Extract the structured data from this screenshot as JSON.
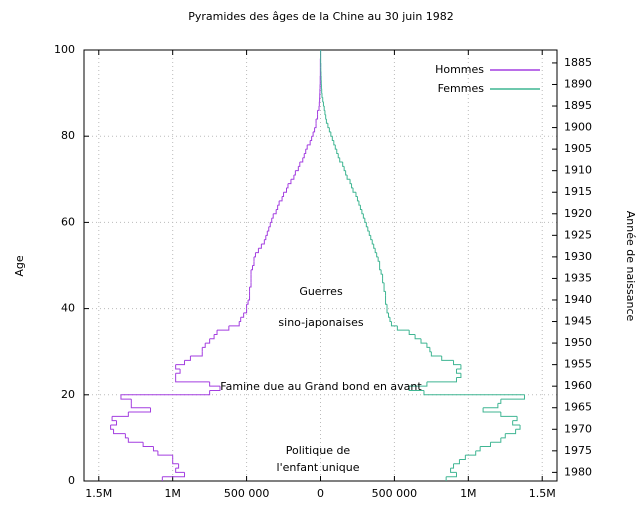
{
  "chart_data": {
    "type": "step-pyramid",
    "title": "Pyramides des âges de la Chine au 30 juin 1982",
    "y_label": "Age",
    "y2_label": "Année de naissance",
    "y": [
      0,
      1,
      2,
      3,
      4,
      5,
      6,
      7,
      8,
      9,
      10,
      11,
      12,
      13,
      14,
      15,
      16,
      17,
      18,
      19,
      20,
      21,
      22,
      23,
      24,
      25,
      26,
      27,
      28,
      29,
      30,
      31,
      32,
      33,
      34,
      35,
      36,
      37,
      38,
      39,
      40,
      41,
      42,
      43,
      44,
      45,
      46,
      47,
      48,
      49,
      50,
      51,
      52,
      53,
      54,
      55,
      56,
      57,
      58,
      59,
      60,
      61,
      62,
      63,
      64,
      65,
      66,
      67,
      68,
      69,
      70,
      71,
      72,
      73,
      74,
      75,
      76,
      77,
      78,
      79,
      80,
      81,
      82,
      83,
      84,
      85,
      86,
      87,
      88,
      89,
      90,
      91,
      92,
      93,
      94,
      95,
      96,
      97,
      98,
      99
    ],
    "series": [
      {
        "name": "Hommes",
        "color": "#a33ee0",
        "values": [
          -1070000,
          -920000,
          -980000,
          -960000,
          -1000000,
          -1000000,
          -1100000,
          -1130000,
          -1200000,
          -1300000,
          -1320000,
          -1400000,
          -1420000,
          -1380000,
          -1410000,
          -1300000,
          -1150000,
          -1280000,
          -1280000,
          -1350000,
          -750000,
          -680000,
          -750000,
          -980000,
          -980000,
          -950000,
          -980000,
          -920000,
          -880000,
          -800000,
          -800000,
          -780000,
          -750000,
          -720000,
          -700000,
          -620000,
          -550000,
          -540000,
          -520000,
          -500000,
          -500000,
          -490000,
          -480000,
          -480000,
          -480000,
          -470000,
          -470000,
          -470000,
          -470000,
          -460000,
          -450000,
          -450000,
          -440000,
          -420000,
          -400000,
          -380000,
          -370000,
          -360000,
          -350000,
          -340000,
          -330000,
          -320000,
          -300000,
          -290000,
          -280000,
          -260000,
          -250000,
          -230000,
          -220000,
          -200000,
          -180000,
          -170000,
          -150000,
          -140000,
          -120000,
          -110000,
          -100000,
          -90000,
          -70000,
          -60000,
          -50000,
          -40000,
          -30000,
          -30000,
          -20000,
          -20000,
          -10000,
          -8000,
          -6000,
          -5000,
          -4000,
          -3000,
          -2000,
          -2000,
          -1000,
          -1000,
          -1000,
          -1000,
          0,
          0
        ]
      },
      {
        "name": "Femmes",
        "color": "#3fb592",
        "values": [
          850000,
          920000,
          880000,
          900000,
          940000,
          980000,
          1050000,
          1080000,
          1150000,
          1220000,
          1250000,
          1320000,
          1350000,
          1300000,
          1330000,
          1220000,
          1100000,
          1200000,
          1220000,
          1380000,
          700000,
          600000,
          720000,
          920000,
          950000,
          920000,
          950000,
          900000,
          820000,
          750000,
          740000,
          720000,
          680000,
          640000,
          600000,
          520000,
          480000,
          470000,
          460000,
          450000,
          450000,
          440000,
          440000,
          440000,
          430000,
          430000,
          420000,
          420000,
          410000,
          400000,
          400000,
          390000,
          380000,
          370000,
          360000,
          350000,
          340000,
          330000,
          320000,
          310000,
          300000,
          290000,
          280000,
          270000,
          260000,
          250000,
          240000,
          220000,
          210000,
          200000,
          180000,
          170000,
          160000,
          150000,
          130000,
          120000,
          110000,
          100000,
          90000,
          80000,
          70000,
          60000,
          50000,
          40000,
          35000,
          30000,
          25000,
          20000,
          15000,
          10000,
          8000,
          6000,
          5000,
          4000,
          3000,
          2000,
          2000,
          1000,
          1000,
          1000
        ]
      }
    ],
    "xlim": [
      -1600000,
      1600000
    ],
    "xticks": [
      {
        "value": -1500000,
        "label": "1.5M"
      },
      {
        "value": -1000000,
        "label": "1M"
      },
      {
        "value": -500000,
        "label": "500 000"
      },
      0,
      {
        "value": 500000,
        "label": "500 000"
      },
      {
        "value": 1000000,
        "label": "1M"
      },
      {
        "value": 1500000,
        "label": "1.5M"
      }
    ],
    "ylim": [
      0,
      100
    ],
    "yticks": [
      0,
      20,
      40,
      60,
      80,
      100
    ],
    "y2lim": [
      1982,
      1882
    ],
    "y2ticks": [
      1885,
      1890,
      1895,
      1900,
      1905,
      1910,
      1915,
      1920,
      1925,
      1930,
      1935,
      1940,
      1945,
      1950,
      1955,
      1960,
      1965,
      1970,
      1975,
      1980
    ],
    "grid": true,
    "legend": "upper right",
    "annotations": [
      "Guerres",
      "sino-japonaises",
      "Famine due au  Grand bond en avant",
      "Politique de",
      "l'enfant unique"
    ]
  }
}
